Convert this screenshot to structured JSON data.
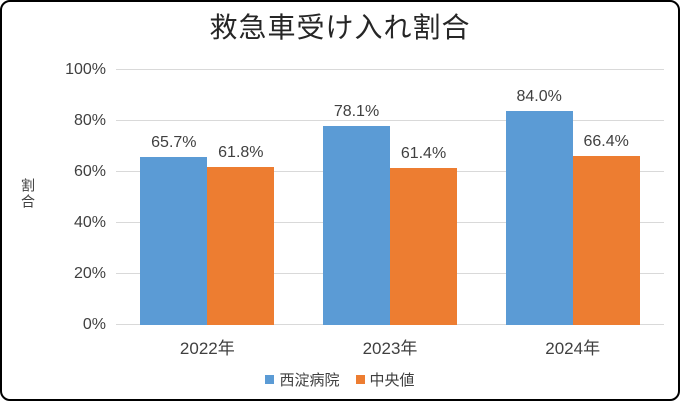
{
  "chart_data": {
    "type": "bar",
    "title": "救急車受け入れ割合",
    "xlabel": "",
    "ylabel": "割合",
    "categories": [
      "2022年",
      "2023年",
      "2024年"
    ],
    "series": [
      {
        "key": "nishiyodo-hospital",
        "name": "西淀病院",
        "color": "#5B9BD5",
        "values": [
          65.7,
          78.1,
          84.0
        ],
        "labels": [
          "65.7%",
          "78.1%",
          "84.0%"
        ]
      },
      {
        "key": "median",
        "name": "中央値",
        "color": "#ED7D31",
        "values": [
          61.8,
          61.4,
          66.4
        ],
        "labels": [
          "61.8%",
          "61.4%",
          "66.4%"
        ]
      }
    ],
    "ylim": [
      0,
      100
    ],
    "y_ticks": [
      "0%",
      "20%",
      "40%",
      "60%",
      "80%",
      "100%"
    ],
    "grid": true,
    "legend_position": "bottom",
    "colors": {
      "gridline": "#D9D9D9",
      "text": "#404040",
      "title_text": "#262626",
      "border": "#000000",
      "background": "#FFFFFF"
    }
  }
}
